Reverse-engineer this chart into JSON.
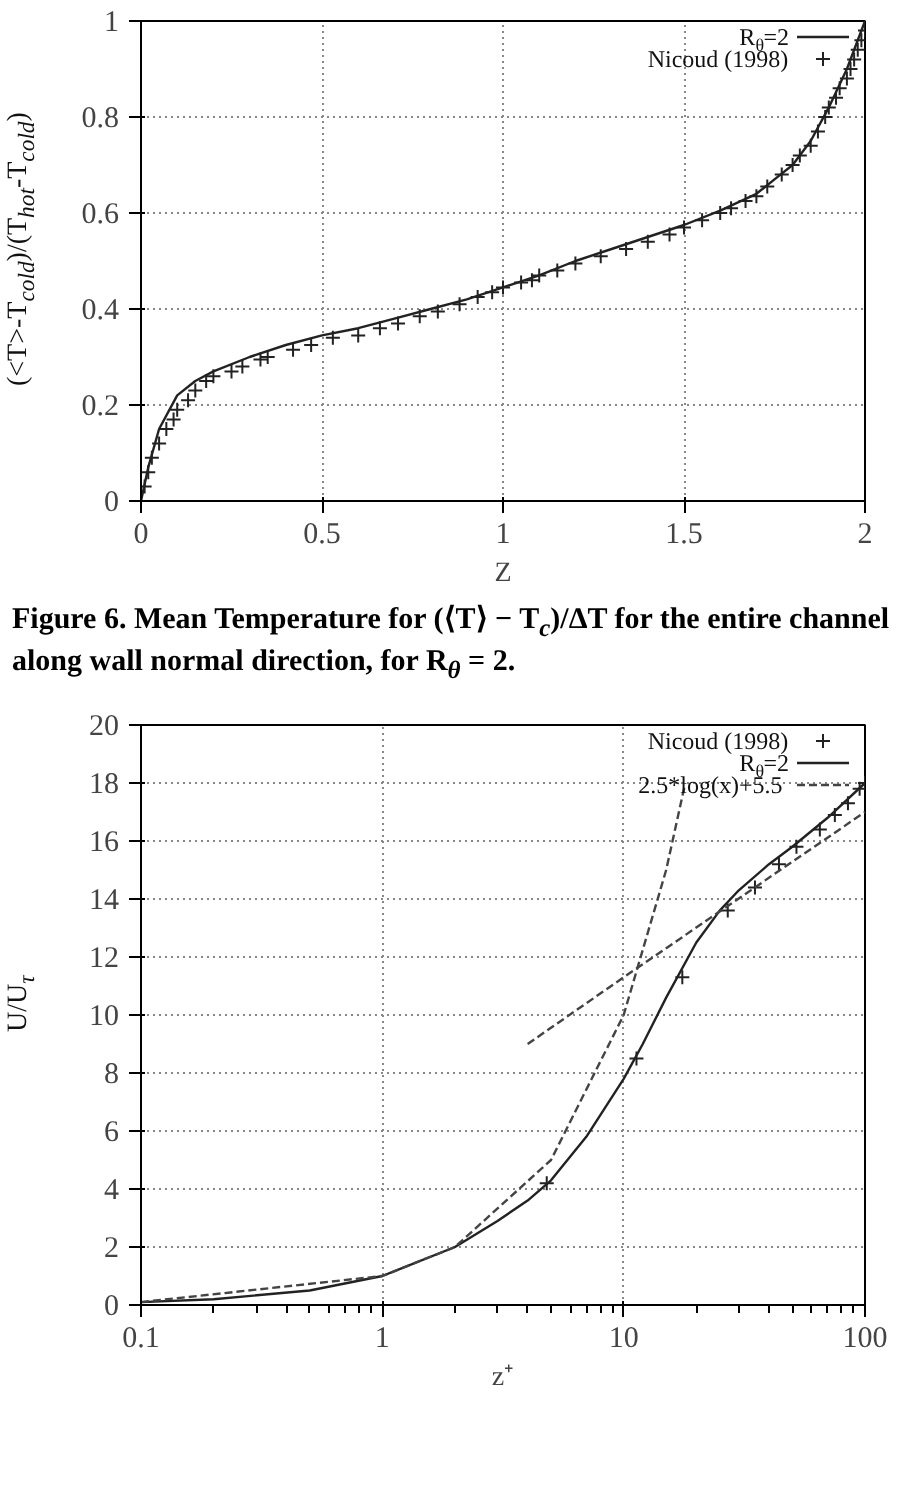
{
  "chart_data": [
    {
      "type": "line",
      "xlabel": "Z",
      "ylabel": "(<T>-T$_{cold}$)/(T$_{hot}$-T$_{cold}$)",
      "xlim": [
        0,
        2
      ],
      "ylim": [
        0,
        1
      ],
      "xticks": [
        0,
        0.5,
        1,
        1.5,
        2
      ],
      "yticks": [
        0,
        0.2,
        0.4,
        0.6,
        0.8,
        1
      ],
      "grid": true,
      "legend": "top right",
      "annotations": [
        "Figure 6. Mean Temperature for (⟨T⟩ − T$_{c}$)/ΔT for the entire channel along wall normal direction, for R$_{θ}$ = 2."
      ],
      "series": [
        {
          "name": "R$_{θ}$=2",
          "color": "#222222",
          "line_style": "solid",
          "x": [
            0,
            0.02,
            0.05,
            0.1,
            0.15,
            0.2,
            0.3,
            0.4,
            0.5,
            0.6,
            0.7,
            0.8,
            0.9,
            1.0,
            1.1,
            1.2,
            1.3,
            1.4,
            1.5,
            1.6,
            1.7,
            1.75,
            1.8,
            1.85,
            1.9,
            1.95,
            2.0
          ],
          "values": [
            0,
            0.07,
            0.15,
            0.22,
            0.25,
            0.27,
            0.3,
            0.325,
            0.345,
            0.36,
            0.38,
            0.4,
            0.42,
            0.445,
            0.47,
            0.5,
            0.525,
            0.55,
            0.575,
            0.605,
            0.64,
            0.67,
            0.7,
            0.75,
            0.82,
            0.9,
            1.0
          ]
        },
        {
          "name": "Nicoud (1998)",
          "type": "scatter",
          "marker": "cross",
          "color": "#222222",
          "x": [
            0.01,
            0.02,
            0.03,
            0.05,
            0.07,
            0.09,
            0.1,
            0.13,
            0.15,
            0.18,
            0.2,
            0.25,
            0.28,
            0.33,
            0.35,
            0.42,
            0.47,
            0.53,
            0.6,
            0.66,
            0.71,
            0.77,
            0.82,
            0.88,
            0.93,
            0.97,
            1.0,
            1.05,
            1.08,
            1.1,
            1.15,
            1.2,
            1.27,
            1.34,
            1.4,
            1.46,
            1.5,
            1.55,
            1.6,
            1.63,
            1.67,
            1.7,
            1.73,
            1.77,
            1.8,
            1.82,
            1.85,
            1.87,
            1.89,
            1.9,
            1.92,
            1.93,
            1.95,
            1.96,
            1.97,
            1.98,
            1.99,
            2.0
          ],
          "values": [
            0.03,
            0.06,
            0.09,
            0.12,
            0.15,
            0.17,
            0.19,
            0.21,
            0.23,
            0.25,
            0.26,
            0.27,
            0.28,
            0.295,
            0.3,
            0.315,
            0.325,
            0.34,
            0.345,
            0.36,
            0.37,
            0.385,
            0.395,
            0.41,
            0.425,
            0.435,
            0.445,
            0.455,
            0.46,
            0.47,
            0.48,
            0.495,
            0.51,
            0.525,
            0.54,
            0.555,
            0.57,
            0.585,
            0.6,
            0.61,
            0.625,
            0.635,
            0.655,
            0.68,
            0.7,
            0.72,
            0.74,
            0.77,
            0.8,
            0.82,
            0.84,
            0.86,
            0.88,
            0.9,
            0.92,
            0.94,
            0.96,
            0.98
          ]
        }
      ]
    },
    {
      "type": "line",
      "xlabel": "z⁺",
      "ylabel": "U/U$_{τ}$",
      "log": "x",
      "xlim": [
        0.1,
        100
      ],
      "ylim": [
        0,
        20
      ],
      "xticks": [
        0.1,
        1,
        10,
        100
      ],
      "yticks": [
        0,
        2,
        4,
        6,
        8,
        10,
        12,
        14,
        16,
        18,
        20
      ],
      "grid": true,
      "legend": "top right",
      "series": [
        {
          "name": "Nicoud (1998)",
          "type": "scatter",
          "marker": "cross",
          "color": "#222222",
          "x": [
            4.8,
            11.3,
            17.5,
            27,
            35,
            44,
            52,
            65,
            75,
            85,
            95,
            100
          ],
          "values": [
            4.2,
            8.5,
            11.3,
            13.6,
            14.4,
            15.2,
            15.8,
            16.4,
            16.9,
            17.3,
            17.8,
            18
          ]
        },
        {
          "name": "R$_{θ}$=2",
          "color": "#222222",
          "line_style": "solid",
          "x": [
            0.1,
            0.2,
            0.5,
            1,
            2,
            3,
            4,
            5,
            7,
            10,
            12,
            15,
            20,
            25,
            30,
            40,
            50,
            70,
            100
          ],
          "values": [
            0.1,
            0.2,
            0.5,
            1,
            2,
            2.9,
            3.6,
            4.3,
            5.8,
            7.8,
            9,
            10.6,
            12.5,
            13.6,
            14.3,
            15.2,
            15.8,
            16.8,
            18
          ]
        },
        {
          "name": "2.5*log(x)+5.5",
          "color": "#444444",
          "line_style": "dashed",
          "x": [
            4,
            10,
            100
          ],
          "values": [
            9,
            11.3,
            17
          ]
        },
        {
          "color": "#444444",
          "line_style": "dashed",
          "x": [
            0.1,
            1,
            2,
            5,
            10,
            15,
            18
          ],
          "values": [
            0.1,
            1,
            2,
            5,
            10,
            15,
            18
          ]
        }
      ]
    }
  ]
}
